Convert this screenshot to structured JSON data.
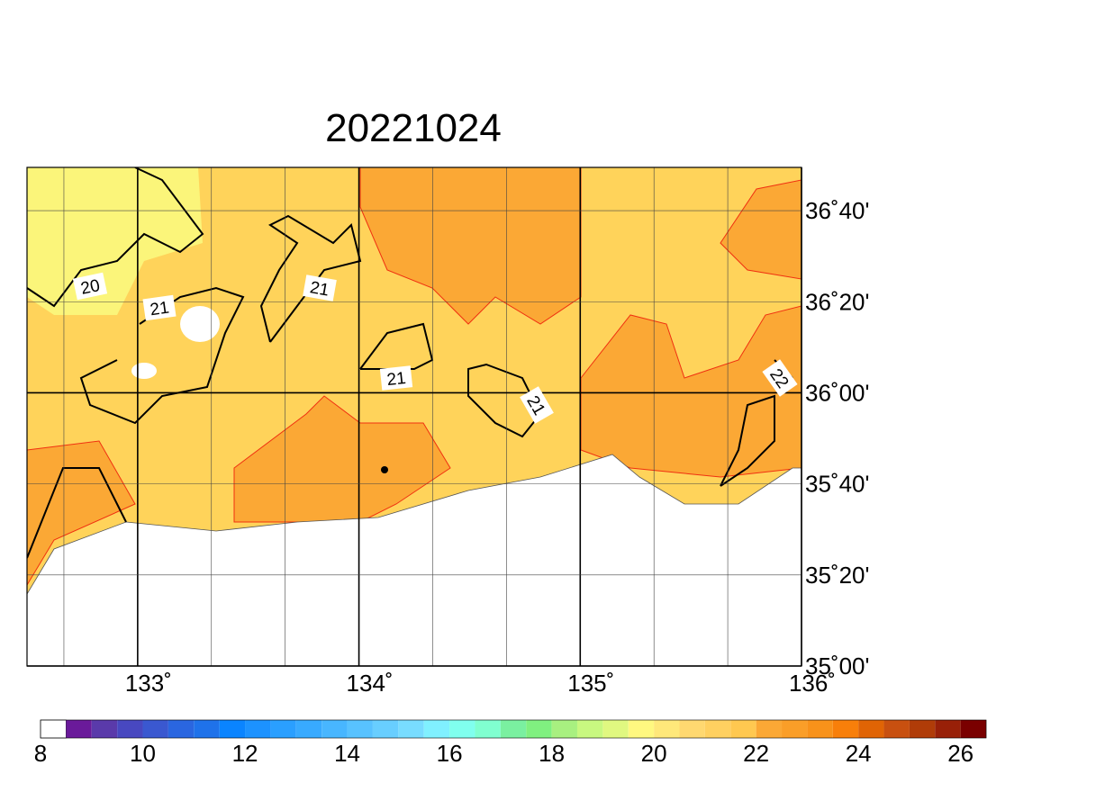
{
  "map": {
    "title": "20221024",
    "lon_ticks": [
      {
        "value": 133,
        "label": "133˚"
      },
      {
        "value": 134,
        "label": "134˚"
      },
      {
        "value": 135,
        "label": "135˚"
      },
      {
        "value": 136,
        "label": "136˚"
      }
    ],
    "lat_ticks": [
      {
        "value": 36.6667,
        "label": "36˚40'"
      },
      {
        "value": 36.3333,
        "label": "36˚20'"
      },
      {
        "value": 36,
        "label": "36˚00'"
      },
      {
        "value": 35.6667,
        "label": "35˚40'"
      },
      {
        "value": 35.3333,
        "label": "35˚20'"
      },
      {
        "value": 35,
        "label": "35˚00'"
      }
    ],
    "contour_labels": [
      "20",
      "21",
      "21",
      "21",
      "21",
      "22"
    ],
    "colorbar": {
      "ticks": [
        8,
        10,
        12,
        14,
        16,
        18,
        20,
        22,
        24,
        26
      ],
      "colors": [
        "#ffffff",
        "#6a1a9a",
        "#5a3aaa",
        "#4848c0",
        "#3a58d0",
        "#2a66e0",
        "#1f72ea",
        "#0a84ff",
        "#1c92ff",
        "#2a9fff",
        "#38aaff",
        "#48b6ff",
        "#58c2ff",
        "#68ceff",
        "#78dcff",
        "#80f0ff",
        "#80ffee",
        "#80ffd0",
        "#7af0a0",
        "#80f080",
        "#a8f080",
        "#c8f880",
        "#e0f880",
        "#fff880",
        "#ffe87a",
        "#ffd870",
        "#ffd060",
        "#ffc850",
        "#fba835",
        "#fa9e28",
        "#f8921a",
        "#f87f0a",
        "#e06405",
        "#c85010",
        "#b03c08",
        "#982008",
        "#7a0000"
      ]
    }
  }
}
